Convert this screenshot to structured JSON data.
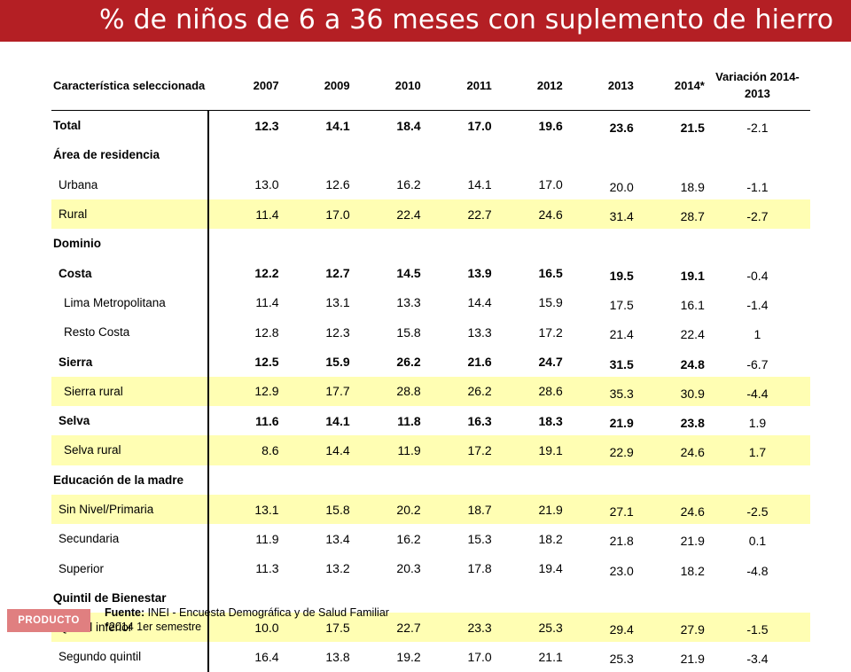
{
  "title": "% de niños de 6 a 36 meses con suplemento de hierro",
  "table": {
    "header_char": "Característica seleccionada",
    "years": [
      "2007",
      "2009",
      "2010",
      "2011",
      "2012",
      "2013",
      "2014*"
    ],
    "header_var": "Variación 2014-2013",
    "rows": [
      {
        "label": "Total",
        "bold": true,
        "hl": false,
        "indent": 0,
        "values": [
          "12.3",
          "14.1",
          "18.4",
          "17.0",
          "19.6",
          "23.6",
          "21.5"
        ],
        "var": "-2.1"
      },
      {
        "label": "Área de residencia",
        "bold": true,
        "hl": false,
        "indent": 0,
        "section": true,
        "values": [],
        "var": ""
      },
      {
        "label": "Urbana",
        "bold": false,
        "hl": false,
        "indent": 1,
        "values": [
          "13.0",
          "12.6",
          "16.2",
          "14.1",
          "17.0",
          "20.0",
          "18.9"
        ],
        "var": "-1.1"
      },
      {
        "label": "Rural",
        "bold": false,
        "hl": true,
        "indent": 1,
        "values": [
          "11.4",
          "17.0",
          "22.4",
          "22.7",
          "24.6",
          "31.4",
          "28.7"
        ],
        "var": "-2.7"
      },
      {
        "label": "Dominio",
        "bold": true,
        "hl": false,
        "indent": 0,
        "section": true,
        "values": [],
        "var": ""
      },
      {
        "label": "Costa",
        "bold": true,
        "hl": false,
        "indent": 1,
        "values": [
          "12.2",
          "12.7",
          "14.5",
          "13.9",
          "16.5",
          "19.5",
          "19.1"
        ],
        "var": "-0.4"
      },
      {
        "label": "Lima Metropolitana",
        "bold": false,
        "hl": false,
        "indent": 2,
        "values": [
          "11.4",
          "13.1",
          "13.3",
          "14.4",
          "15.9",
          "17.5",
          "16.1"
        ],
        "var": "-1.4"
      },
      {
        "label": "Resto Costa",
        "bold": false,
        "hl": false,
        "indent": 2,
        "values": [
          "12.8",
          "12.3",
          "15.8",
          "13.3",
          "17.2",
          "21.4",
          "22.4"
        ],
        "var": "1"
      },
      {
        "label": "Sierra",
        "bold": true,
        "hl": false,
        "indent": 1,
        "values": [
          "12.5",
          "15.9",
          "26.2",
          "21.6",
          "24.7",
          "31.5",
          "24.8"
        ],
        "var": "-6.7"
      },
      {
        "label": "Sierra rural",
        "bold": false,
        "hl": true,
        "indent": 2,
        "values": [
          "12.9",
          "17.7",
          "28.8",
          "26.2",
          "28.6",
          "35.3",
          "30.9"
        ],
        "var": "-4.4"
      },
      {
        "label": "Selva",
        "bold": true,
        "hl": false,
        "indent": 1,
        "values": [
          "11.6",
          "14.1",
          "11.8",
          "16.3",
          "18.3",
          "21.9",
          "23.8"
        ],
        "var": "1.9"
      },
      {
        "label": "Selva rural",
        "bold": false,
        "hl": true,
        "indent": 2,
        "values": [
          "8.6",
          "14.4",
          "11.9",
          "17.2",
          "19.1",
          "22.9",
          "24.6"
        ],
        "var": "1.7"
      },
      {
        "label": "Educación de la madre",
        "bold": true,
        "hl": false,
        "indent": 0,
        "section": true,
        "values": [],
        "var": ""
      },
      {
        "label": "Sin Nivel/Primaria",
        "bold": false,
        "hl": true,
        "indent": 1,
        "values": [
          "13.1",
          "15.8",
          "20.2",
          "18.7",
          "21.9",
          "27.1",
          "24.6"
        ],
        "var": "-2.5"
      },
      {
        "label": "Secundaria",
        "bold": false,
        "hl": false,
        "indent": 1,
        "values": [
          "11.9",
          "13.4",
          "16.2",
          "15.3",
          "18.2",
          "21.8",
          "21.9"
        ],
        "var": "0.1"
      },
      {
        "label": "Superior",
        "bold": false,
        "hl": false,
        "indent": 1,
        "values": [
          "11.3",
          "13.2",
          "20.3",
          "17.8",
          "19.4",
          "23.0",
          "18.2"
        ],
        "var": "-4.8"
      },
      {
        "label": "Quintil de Bienestar",
        "bold": true,
        "hl": false,
        "indent": 0,
        "section": true,
        "values": [],
        "var": ""
      },
      {
        "label": "Quintil inferior",
        "bold": false,
        "hl": true,
        "indent": 1,
        "values": [
          "10.0",
          "17.5",
          "22.7",
          "23.3",
          "25.3",
          "29.4",
          "27.9"
        ],
        "var": "-1.5"
      },
      {
        "label": "Segundo quintil",
        "bold": false,
        "hl": false,
        "indent": 1,
        "values": [
          "16.4",
          "13.8",
          "19.2",
          "17.0",
          "21.1",
          "25.3",
          "21.9"
        ],
        "var": "-3.4"
      }
    ]
  },
  "badge": "PRODUCTO",
  "source": {
    "label": "Fuente:",
    "text": " INEI - Encuesta Demográfica y de Salud Familiar",
    "note": "*2014 1er semestre"
  }
}
